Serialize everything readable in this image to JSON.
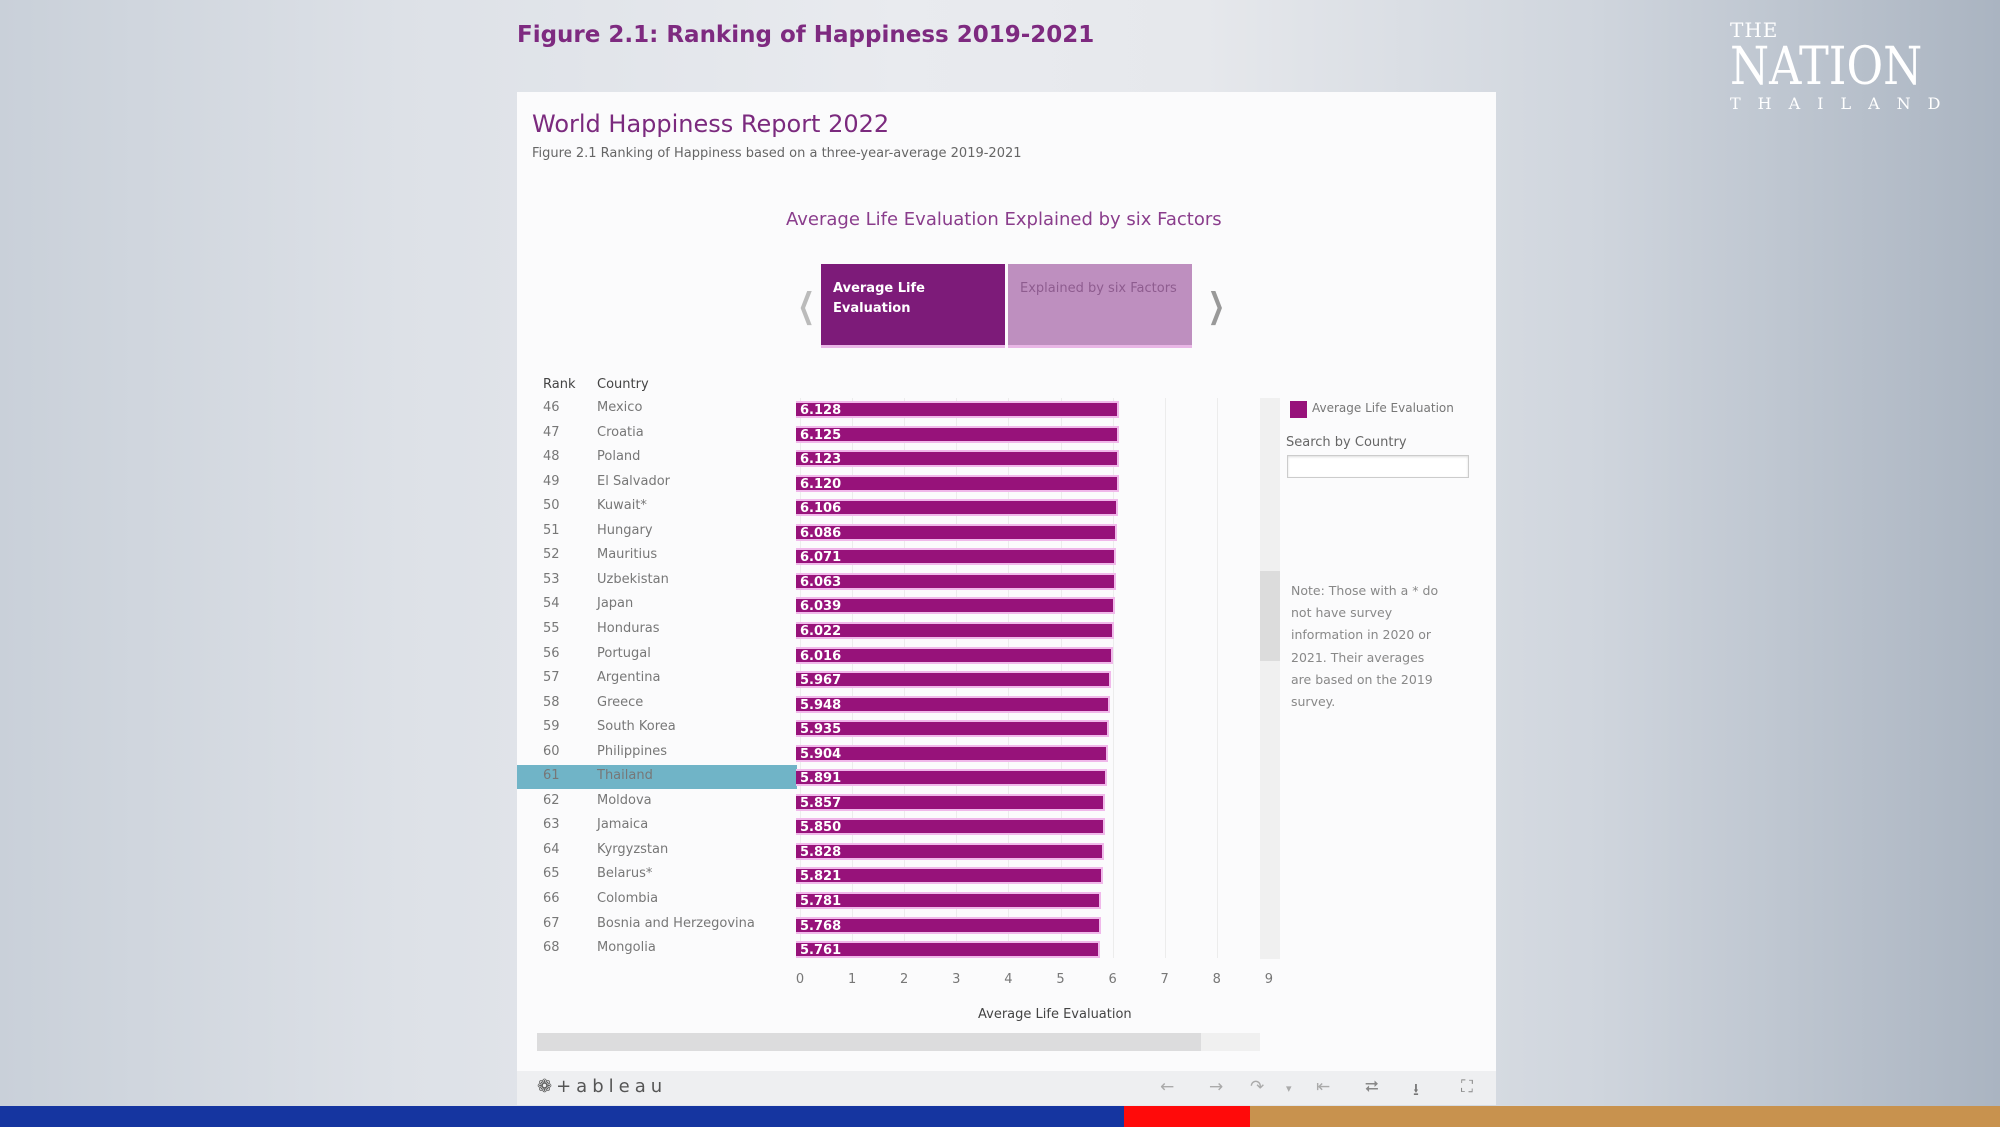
{
  "figure_title": "Figure 2.1: Ranking of Happiness 2019-2021",
  "logo": {
    "the": "THE",
    "nation": "NATION",
    "thailand": "THAILAND"
  },
  "report": {
    "title": "World Happiness Report 2022",
    "subtitle": "Figure 2.1 Ranking of Happiness based on a three-year-average 2019-2021",
    "section_header": "Average Life Evaluation Explained by six Factors"
  },
  "tabs": [
    {
      "label": "Average Life Evaluation",
      "active": true
    },
    {
      "label": "Explained by six Factors",
      "active": false
    }
  ],
  "table_headers": {
    "rank": "Rank",
    "country": "Country"
  },
  "colors": {
    "bar": "#97127a",
    "highlight": "#70b4c7",
    "title": "#7e2a80"
  },
  "chart_data": {
    "type": "bar",
    "orientation": "horizontal",
    "xlabel": "Average Life Evaluation",
    "xlim": [
      0,
      9
    ],
    "xticks": [
      "0",
      "1",
      "2",
      "3",
      "4",
      "5",
      "6",
      "7",
      "8",
      "9"
    ],
    "grid": true,
    "highlighted": "Thailand",
    "rows": [
      {
        "rank": "46",
        "country": "Mexico",
        "value": "6.128"
      },
      {
        "rank": "47",
        "country": "Croatia",
        "value": "6.125"
      },
      {
        "rank": "48",
        "country": "Poland",
        "value": "6.123"
      },
      {
        "rank": "49",
        "country": "El Salvador",
        "value": "6.120"
      },
      {
        "rank": "50",
        "country": "Kuwait*",
        "value": "6.106"
      },
      {
        "rank": "51",
        "country": "Hungary",
        "value": "6.086"
      },
      {
        "rank": "52",
        "country": "Mauritius",
        "value": "6.071"
      },
      {
        "rank": "53",
        "country": "Uzbekistan",
        "value": "6.063"
      },
      {
        "rank": "54",
        "country": "Japan",
        "value": "6.039"
      },
      {
        "rank": "55",
        "country": "Honduras",
        "value": "6.022"
      },
      {
        "rank": "56",
        "country": "Portugal",
        "value": "6.016"
      },
      {
        "rank": "57",
        "country": "Argentina",
        "value": "5.967"
      },
      {
        "rank": "58",
        "country": "Greece",
        "value": "5.948"
      },
      {
        "rank": "59",
        "country": "South Korea",
        "value": "5.935"
      },
      {
        "rank": "60",
        "country": "Philippines",
        "value": "5.904"
      },
      {
        "rank": "61",
        "country": "Thailand",
        "value": "5.891"
      },
      {
        "rank": "62",
        "country": "Moldova",
        "value": "5.857"
      },
      {
        "rank": "63",
        "country": "Jamaica",
        "value": "5.850"
      },
      {
        "rank": "64",
        "country": "Kyrgyzstan",
        "value": "5.828"
      },
      {
        "rank": "65",
        "country": "Belarus*",
        "value": "5.821"
      },
      {
        "rank": "66",
        "country": "Colombia",
        "value": "5.781"
      },
      {
        "rank": "67",
        "country": "Bosnia and Herzegovina",
        "value": "5.768"
      },
      {
        "rank": "68",
        "country": "Mongolia",
        "value": "5.761"
      }
    ]
  },
  "legend": {
    "label": "Average Life Evaluation"
  },
  "search": {
    "label": "Search by Country",
    "value": "",
    "placeholder": ""
  },
  "note": "Note: Those with a * do not have survey information in 2020 or 2021. Their averages are based on the 2019 survey.",
  "toolbar": {
    "brand": "+ableau"
  }
}
